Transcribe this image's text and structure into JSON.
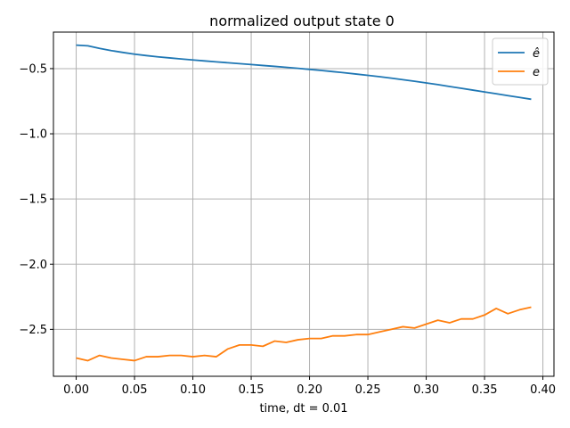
{
  "chart_data": {
    "type": "line",
    "title": "normalized output state 0",
    "xlabel": "time, dt = 0.01",
    "ylabel": "",
    "xlim": [
      -0.0195,
      0.4095
    ],
    "ylim": [
      -2.86,
      -0.22
    ],
    "x_ticks": [
      0.0,
      0.05,
      0.1,
      0.15,
      0.2,
      0.25,
      0.3,
      0.35,
      0.4
    ],
    "x_tick_labels": [
      "0.00",
      "0.05",
      "0.10",
      "0.15",
      "0.20",
      "0.25",
      "0.30",
      "0.35",
      "0.40"
    ],
    "y_ticks": [
      -2.5,
      -2.0,
      -1.5,
      -1.0,
      -0.5
    ],
    "y_tick_labels": [
      "−2.5",
      "−2.0",
      "−1.5",
      "−1.0",
      "−0.5"
    ],
    "grid": true,
    "legend_position": "top-right",
    "x": [
      0.0,
      0.01,
      0.02,
      0.03,
      0.04,
      0.05,
      0.06,
      0.07,
      0.08,
      0.09,
      0.1,
      0.11,
      0.12,
      0.13,
      0.14,
      0.15,
      0.16,
      0.17,
      0.18,
      0.19,
      0.2,
      0.21,
      0.22,
      0.23,
      0.24,
      0.25,
      0.26,
      0.27,
      0.28,
      0.29,
      0.3,
      0.31,
      0.32,
      0.33,
      0.34,
      0.35,
      0.36,
      0.37,
      0.38,
      0.39
    ],
    "series": [
      {
        "name": "ê",
        "color": "#1f77b4",
        "values": [
          -0.32,
          -0.325,
          -0.345,
          -0.362,
          -0.376,
          -0.389,
          -0.4,
          -0.41,
          -0.418,
          -0.426,
          -0.434,
          -0.441,
          -0.448,
          -0.455,
          -0.462,
          -0.469,
          -0.476,
          -0.483,
          -0.49,
          -0.498,
          -0.506,
          -0.514,
          -0.523,
          -0.532,
          -0.542,
          -0.552,
          -0.562,
          -0.573,
          -0.585,
          -0.597,
          -0.61,
          -0.623,
          -0.637,
          -0.651,
          -0.665,
          -0.679,
          -0.693,
          -0.707,
          -0.721,
          -0.735
        ]
      },
      {
        "name": "e",
        "color": "#ff7f0e",
        "values": [
          -2.72,
          -2.74,
          -2.7,
          -2.72,
          -2.73,
          -2.74,
          -2.71,
          -2.71,
          -2.7,
          -2.7,
          -2.71,
          -2.7,
          -2.71,
          -2.65,
          -2.62,
          -2.62,
          -2.63,
          -2.59,
          -2.6,
          -2.58,
          -2.57,
          -2.57,
          -2.55,
          -2.55,
          -2.54,
          -2.54,
          -2.52,
          -2.5,
          -2.48,
          -2.49,
          -2.46,
          -2.43,
          -2.45,
          -2.42,
          -2.42,
          -2.39,
          -2.34,
          -2.38,
          -2.35,
          -2.33
        ]
      }
    ]
  }
}
